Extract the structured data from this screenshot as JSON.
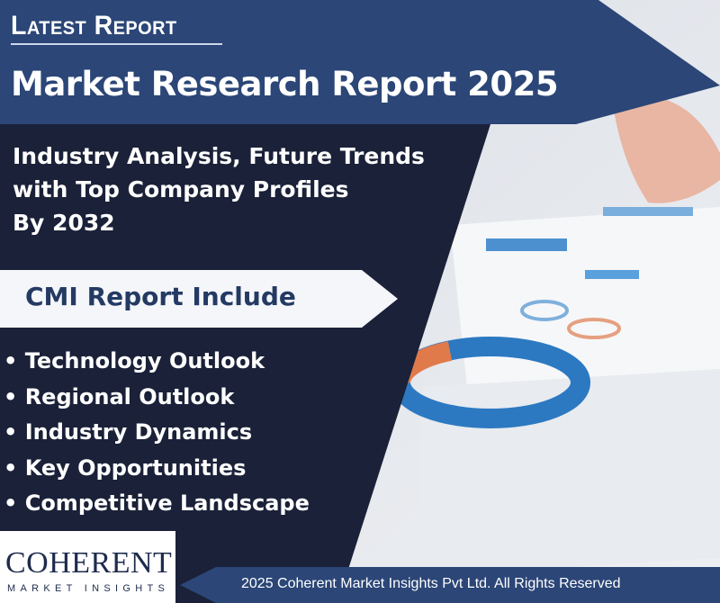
{
  "header": {
    "kicker": "Latest Report",
    "title": "Market Research Report 2025"
  },
  "subtitle": [
    "Industry Analysis, Future Trends",
    "with Top Company Profiles",
    "By  2032"
  ],
  "includes": {
    "heading": "CMI Report Include",
    "items": [
      "Technology Outlook",
      "Regional Outlook",
      "Industry Dynamics",
      "Key Opportunities",
      "Competitive Landscape"
    ]
  },
  "logo": {
    "name": "COHERENT",
    "tagline": "MARKET INSIGHTS"
  },
  "footer": {
    "copyright": "2025 Coherent Market Insights Pvt Ltd. All Rights Reserved"
  },
  "colors": {
    "navy": "#1a2138",
    "banner_blue": "#2b4677",
    "pill": "#f4f6fa"
  }
}
